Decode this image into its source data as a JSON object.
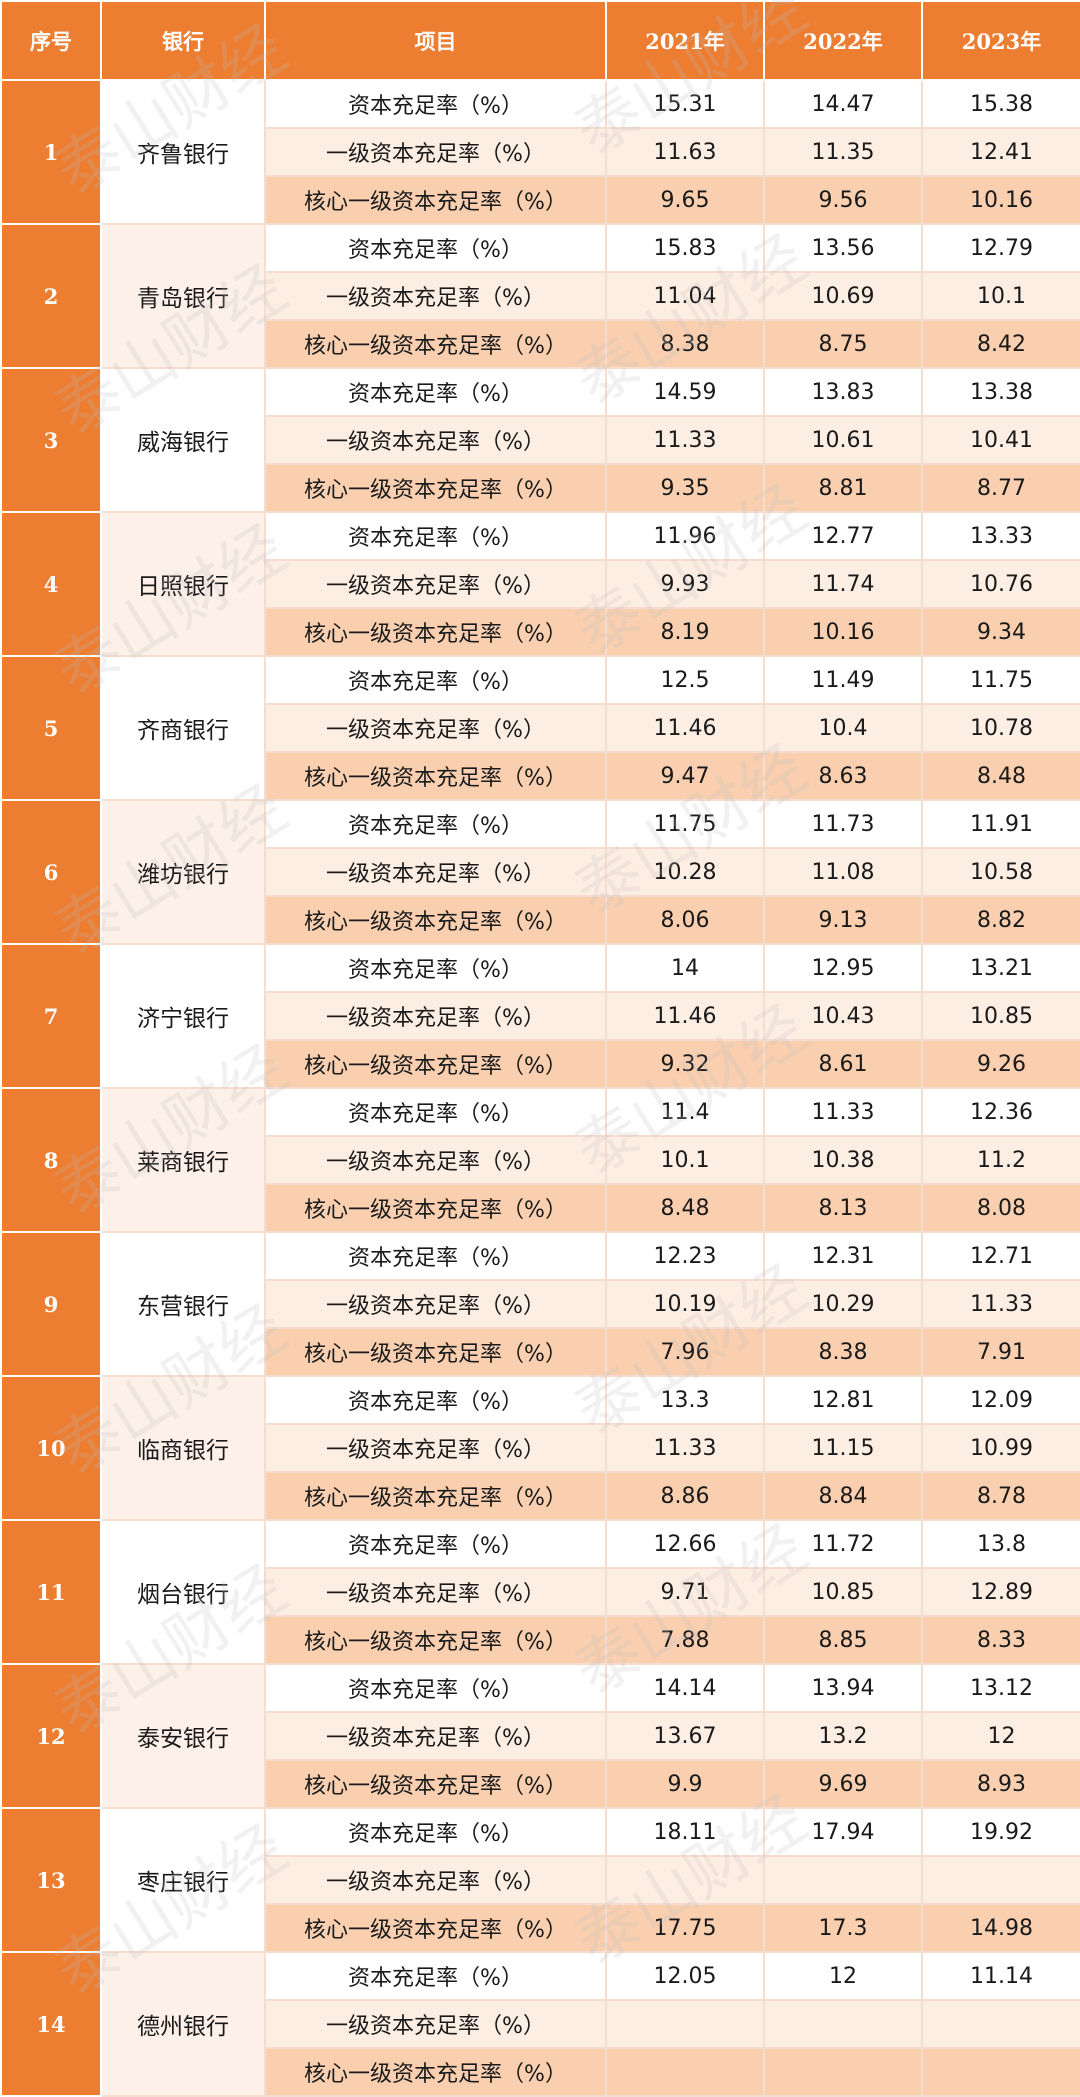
{
  "header": {
    "idx": "序号",
    "bank": "银行",
    "item": "项目",
    "y2021": "2021年",
    "y2022": "2022年",
    "y2023": "2023年"
  },
  "metrics": [
    "资本充足率（%）",
    "一级资本充足率（%）",
    "核心一级资本充足率（%）"
  ],
  "banks": [
    {
      "idx": "1",
      "name": "齐鲁银行",
      "rows": [
        [
          "15.31",
          "14.47",
          "15.38"
        ],
        [
          "11.63",
          "11.35",
          "12.41"
        ],
        [
          "9.65",
          "9.56",
          "10.16"
        ]
      ]
    },
    {
      "idx": "2",
      "name": "青岛银行",
      "rows": [
        [
          "15.83",
          "13.56",
          "12.79"
        ],
        [
          "11.04",
          "10.69",
          "10.1"
        ],
        [
          "8.38",
          "8.75",
          "8.42"
        ]
      ]
    },
    {
      "idx": "3",
      "name": "威海银行",
      "rows": [
        [
          "14.59",
          "13.83",
          "13.38"
        ],
        [
          "11.33",
          "10.61",
          "10.41"
        ],
        [
          "9.35",
          "8.81",
          "8.77"
        ]
      ]
    },
    {
      "idx": "4",
      "name": "日照银行",
      "rows": [
        [
          "11.96",
          "12.77",
          "13.33"
        ],
        [
          "9.93",
          "11.74",
          "10.76"
        ],
        [
          "8.19",
          "10.16",
          "9.34"
        ]
      ]
    },
    {
      "idx": "5",
      "name": "齐商银行",
      "rows": [
        [
          "12.5",
          "11.49",
          "11.75"
        ],
        [
          "11.46",
          "10.4",
          "10.78"
        ],
        [
          "9.47",
          "8.63",
          "8.48"
        ]
      ]
    },
    {
      "idx": "6",
      "name": "潍坊银行",
      "rows": [
        [
          "11.75",
          "11.73",
          "11.91"
        ],
        [
          "10.28",
          "11.08",
          "10.58"
        ],
        [
          "8.06",
          "9.13",
          "8.82"
        ]
      ]
    },
    {
      "idx": "7",
      "name": "济宁银行",
      "rows": [
        [
          "14",
          "12.95",
          "13.21"
        ],
        [
          "11.46",
          "10.43",
          "10.85"
        ],
        [
          "9.32",
          "8.61",
          "9.26"
        ]
      ]
    },
    {
      "idx": "8",
      "name": "莱商银行",
      "rows": [
        [
          "11.4",
          "11.33",
          "12.36"
        ],
        [
          "10.1",
          "10.38",
          "11.2"
        ],
        [
          "8.48",
          "8.13",
          "8.08"
        ]
      ]
    },
    {
      "idx": "9",
      "name": "东营银行",
      "rows": [
        [
          "12.23",
          "12.31",
          "12.71"
        ],
        [
          "10.19",
          "10.29",
          "11.33"
        ],
        [
          "7.96",
          "8.38",
          "7.91"
        ]
      ]
    },
    {
      "idx": "10",
      "name": "临商银行",
      "rows": [
        [
          "13.3",
          "12.81",
          "12.09"
        ],
        [
          "11.33",
          "11.15",
          "10.99"
        ],
        [
          "8.86",
          "8.84",
          "8.78"
        ]
      ]
    },
    {
      "idx": "11",
      "name": "烟台银行",
      "rows": [
        [
          "12.66",
          "11.72",
          "13.8"
        ],
        [
          "9.71",
          "10.85",
          "12.89"
        ],
        [
          "7.88",
          "8.85",
          "8.33"
        ]
      ]
    },
    {
      "idx": "12",
      "name": "泰安银行",
      "rows": [
        [
          "14.14",
          "13.94",
          "13.12"
        ],
        [
          "13.67",
          "13.2",
          "12"
        ],
        [
          "9.9",
          "9.69",
          "8.93"
        ]
      ]
    },
    {
      "idx": "13",
      "name": "枣庄银行",
      "rows": [
        [
          "18.11",
          "17.94",
          "19.92"
        ],
        [
          "",
          "",
          ""
        ],
        [
          "17.75",
          "17.3",
          "14.98"
        ]
      ]
    },
    {
      "idx": "14",
      "name": "德州银行",
      "rows": [
        [
          "12.05",
          "12",
          "11.14"
        ],
        [
          "",
          "",
          ""
        ],
        [
          "",
          "",
          ""
        ]
      ]
    }
  ],
  "watermark": "泰山财经",
  "colors": {
    "header": "#ec7d31",
    "row_light": "#fdeee4",
    "row_dark": "#f9cfb0"
  }
}
